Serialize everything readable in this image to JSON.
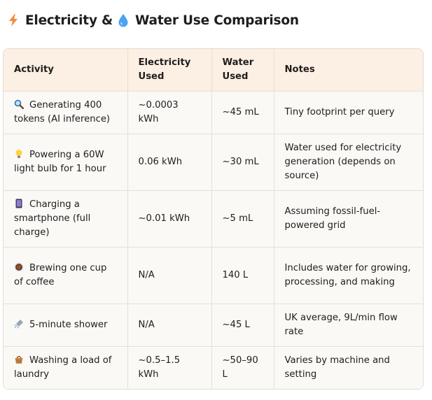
{
  "title": {
    "prefix_icon": "lightning-bolt-icon",
    "part1": "Electricity &",
    "mid_icon": "water-droplet-icon",
    "part2": "Water Use Comparison"
  },
  "table": {
    "headers": {
      "activity": "Activity",
      "electricity": "Electricity Used",
      "water": "Water Used",
      "notes": "Notes"
    },
    "rows": [
      {
        "icon": "magnifying-glass-icon",
        "activity": "Generating 400 tokens (AI inference)",
        "electricity": "~0.0003 kWh",
        "water": "~45 mL",
        "notes": "Tiny footprint per query"
      },
      {
        "icon": "light-bulb-icon",
        "activity": "Powering a 60W light bulb for 1 hour",
        "electricity": "0.06 kWh",
        "water": "~30 mL",
        "notes": "Water used for electricity generation (depends on source)"
      },
      {
        "icon": "smartphone-icon",
        "activity": "Charging a smartphone (full charge)",
        "electricity": "~0.01 kWh",
        "water": "~5 mL",
        "notes": "Assuming fossil-fuel-powered grid"
      },
      {
        "icon": "coffee-cup-icon",
        "activity": "Brewing one cup of coffee",
        "electricity": "N/A",
        "water": "140 L",
        "notes": "Includes water for growing, processing, and making"
      },
      {
        "icon": "shower-icon",
        "activity": "5-minute shower",
        "electricity": "N/A",
        "water": "~45 L",
        "notes": "UK average, 9L/min flow rate"
      },
      {
        "icon": "laundry-basket-icon",
        "activity": "Washing a load of laundry",
        "electricity": "~0.5–1.5 kWh",
        "water": "~50–90 L",
        "notes": "Varies by machine and setting"
      }
    ]
  }
}
